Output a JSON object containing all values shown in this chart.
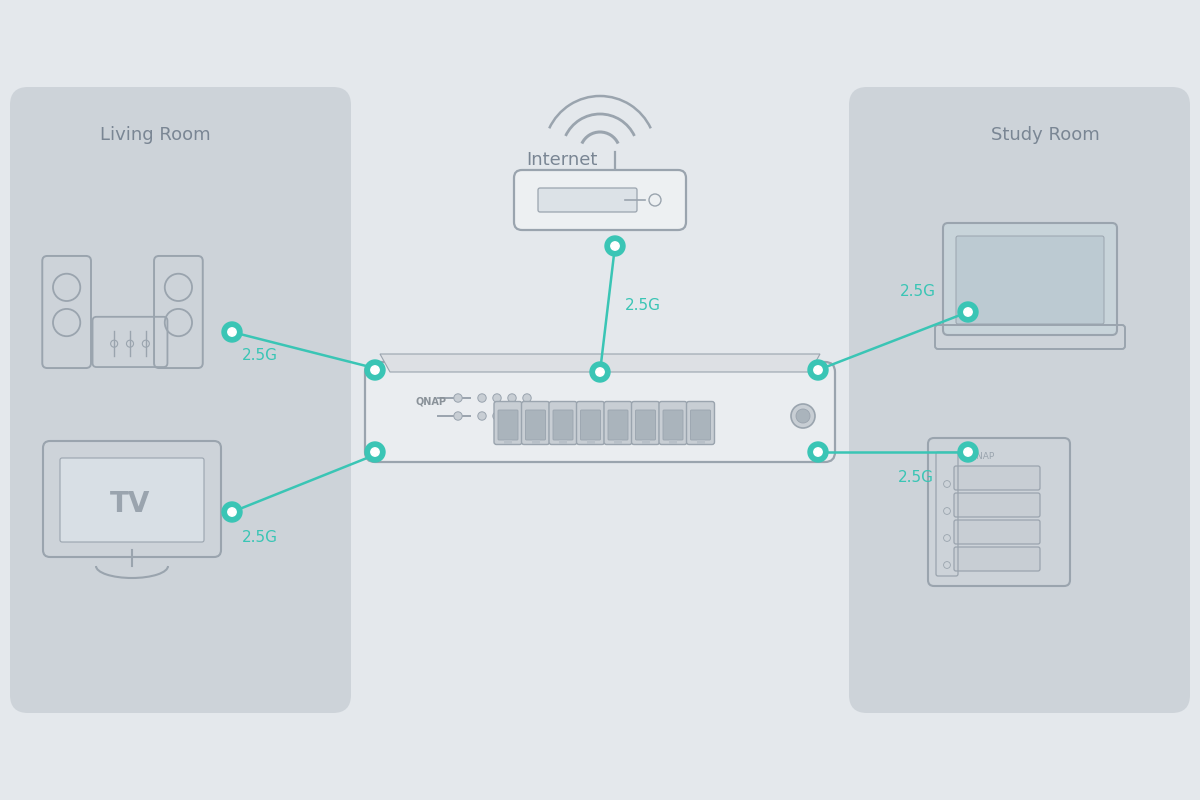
{
  "bg_color": "#e4e8ec",
  "panel_color": "#cdd3d9",
  "device_stroke": "#9aa4ae",
  "teal": "#3ac5b5",
  "text_color": "#7a8694",
  "title_left": "Living Room",
  "title_right": "Study Room",
  "title_internet": "Internet",
  "label_25g": "2.5G",
  "fig_w": 12,
  "fig_h": 8
}
